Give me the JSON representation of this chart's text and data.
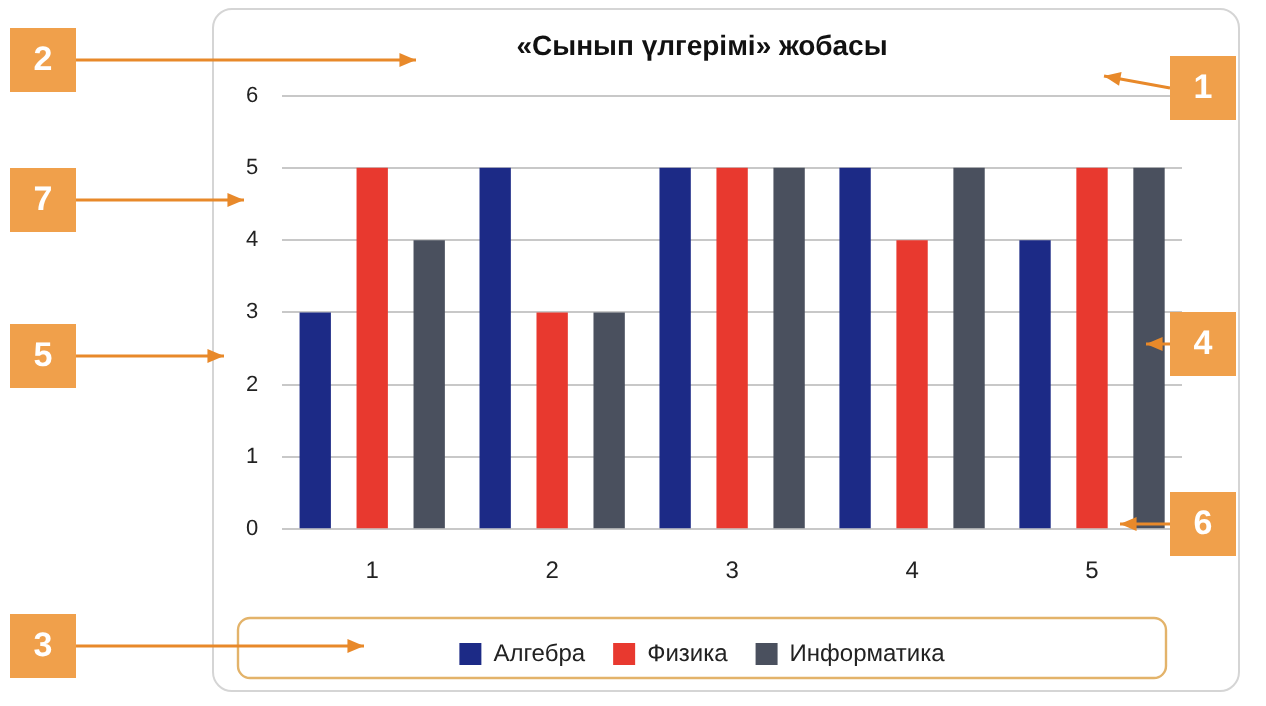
{
  "chart_data": {
    "type": "bar",
    "title": "«Сынып үлгерімі» жобасы",
    "categories": [
      "1",
      "2",
      "3",
      "4",
      "5"
    ],
    "series": [
      {
        "name": "Алгебра",
        "color": "#1c2a86",
        "values": [
          3,
          5,
          5,
          5,
          4
        ]
      },
      {
        "name": "Физика",
        "color": "#e8392f",
        "values": [
          5,
          3,
          5,
          4,
          5
        ]
      },
      {
        "name": "Информатика",
        "color": "#4a505e",
        "values": [
          4,
          3,
          5,
          5,
          5
        ]
      }
    ],
    "ylim": [
      0,
      6
    ],
    "yticks": [
      0,
      1,
      2,
      3,
      4,
      5,
      6
    ],
    "grid": "y",
    "legend": "bottom",
    "annotations": [
      "1",
      "2",
      "3",
      "4",
      "5",
      "6",
      "7"
    ]
  }
}
